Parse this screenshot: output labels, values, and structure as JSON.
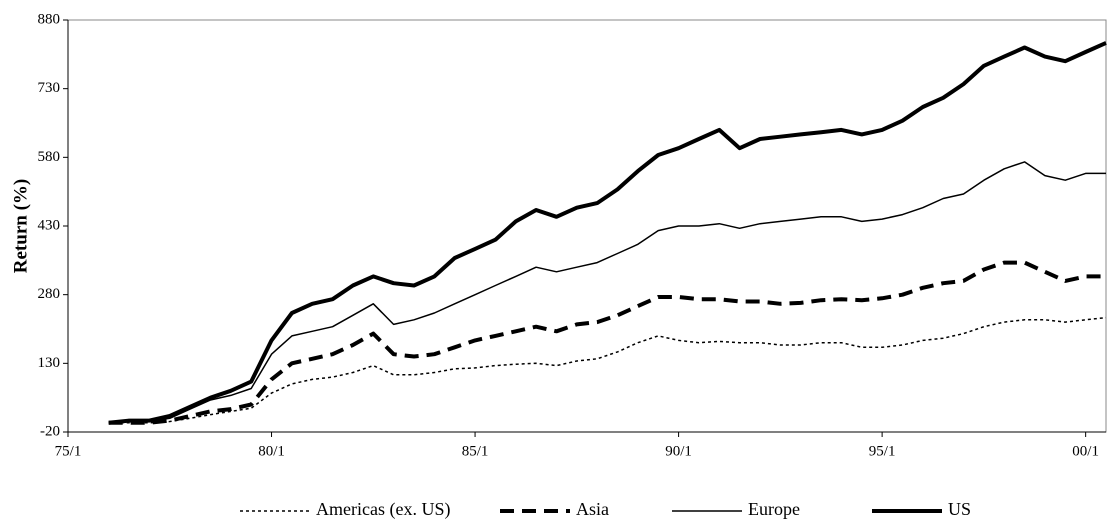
{
  "chart_data": {
    "type": "line",
    "y_label": "Return (%)",
    "x": [
      "76/1",
      "76/7",
      "77/1",
      "77/7",
      "78/1",
      "78/7",
      "79/1",
      "79/7",
      "80/1",
      "80/7",
      "81/1",
      "81/7",
      "82/1",
      "82/7",
      "83/1",
      "83/7",
      "84/1",
      "84/7",
      "85/1",
      "85/7",
      "86/1",
      "86/7",
      "87/1",
      "87/7",
      "88/1",
      "88/7",
      "89/1",
      "89/7",
      "90/1",
      "90/7",
      "91/1",
      "91/7",
      "92/1",
      "92/7",
      "93/1",
      "93/7",
      "94/1",
      "94/7",
      "95/1",
      "95/7",
      "96/1",
      "96/7",
      "97/1",
      "97/7",
      "98/1",
      "98/7",
      "99/1",
      "99/7",
      "00/1",
      "00/7"
    ],
    "xlim": [
      "75/1",
      "00/7"
    ],
    "xticks": [
      "75/1",
      "80/1",
      "85/1",
      "90/1",
      "95/1",
      "00/1"
    ],
    "ylim": [
      -20,
      880
    ],
    "yticks": [
      -20,
      130,
      280,
      430,
      580,
      730,
      880
    ],
    "series": [
      {
        "name": "Americas (ex. US)",
        "color": "#000000",
        "width": 1.5,
        "dash": "3 3",
        "values": [
          0,
          0,
          0,
          3,
          10,
          18,
          25,
          32,
          65,
          85,
          95,
          100,
          110,
          125,
          105,
          105,
          110,
          118,
          120,
          125,
          128,
          130,
          125,
          135,
          140,
          155,
          175,
          190,
          180,
          175,
          178,
          175,
          175,
          170,
          170,
          175,
          175,
          165,
          165,
          170,
          180,
          185,
          195,
          210,
          220,
          225,
          225,
          220,
          225,
          230
        ]
      },
      {
        "name": "Asia",
        "color": "#000000",
        "width": 4,
        "dash": "14 8",
        "values": [
          0,
          0,
          0,
          5,
          15,
          25,
          30,
          40,
          95,
          130,
          140,
          150,
          170,
          195,
          150,
          145,
          150,
          165,
          180,
          190,
          200,
          210,
          200,
          215,
          220,
          235,
          255,
          275,
          275,
          270,
          270,
          265,
          265,
          260,
          262,
          268,
          270,
          268,
          272,
          280,
          295,
          305,
          310,
          335,
          350,
          350,
          330,
          310,
          320,
          320
        ]
      },
      {
        "name": "Europe",
        "color": "#000000",
        "width": 1.5,
        "dash": "none",
        "values": [
          0,
          3,
          3,
          10,
          30,
          50,
          60,
          75,
          150,
          190,
          200,
          210,
          235,
          260,
          215,
          225,
          240,
          260,
          280,
          300,
          320,
          340,
          330,
          340,
          350,
          370,
          390,
          420,
          430,
          430,
          435,
          425,
          435,
          440,
          445,
          450,
          450,
          440,
          445,
          455,
          470,
          490,
          500,
          530,
          555,
          570,
          540,
          530,
          545,
          545
        ]
      },
      {
        "name": "US",
        "color": "#000000",
        "width": 4,
        "dash": "none",
        "values": [
          0,
          5,
          5,
          15,
          35,
          55,
          70,
          90,
          180,
          240,
          260,
          270,
          300,
          320,
          305,
          300,
          320,
          360,
          380,
          400,
          440,
          465,
          450,
          470,
          480,
          510,
          550,
          585,
          600,
          620,
          640,
          600,
          620,
          625,
          630,
          635,
          640,
          630,
          640,
          660,
          690,
          710,
          740,
          780,
          800,
          820,
          800,
          790,
          810,
          830
        ]
      }
    ]
  }
}
